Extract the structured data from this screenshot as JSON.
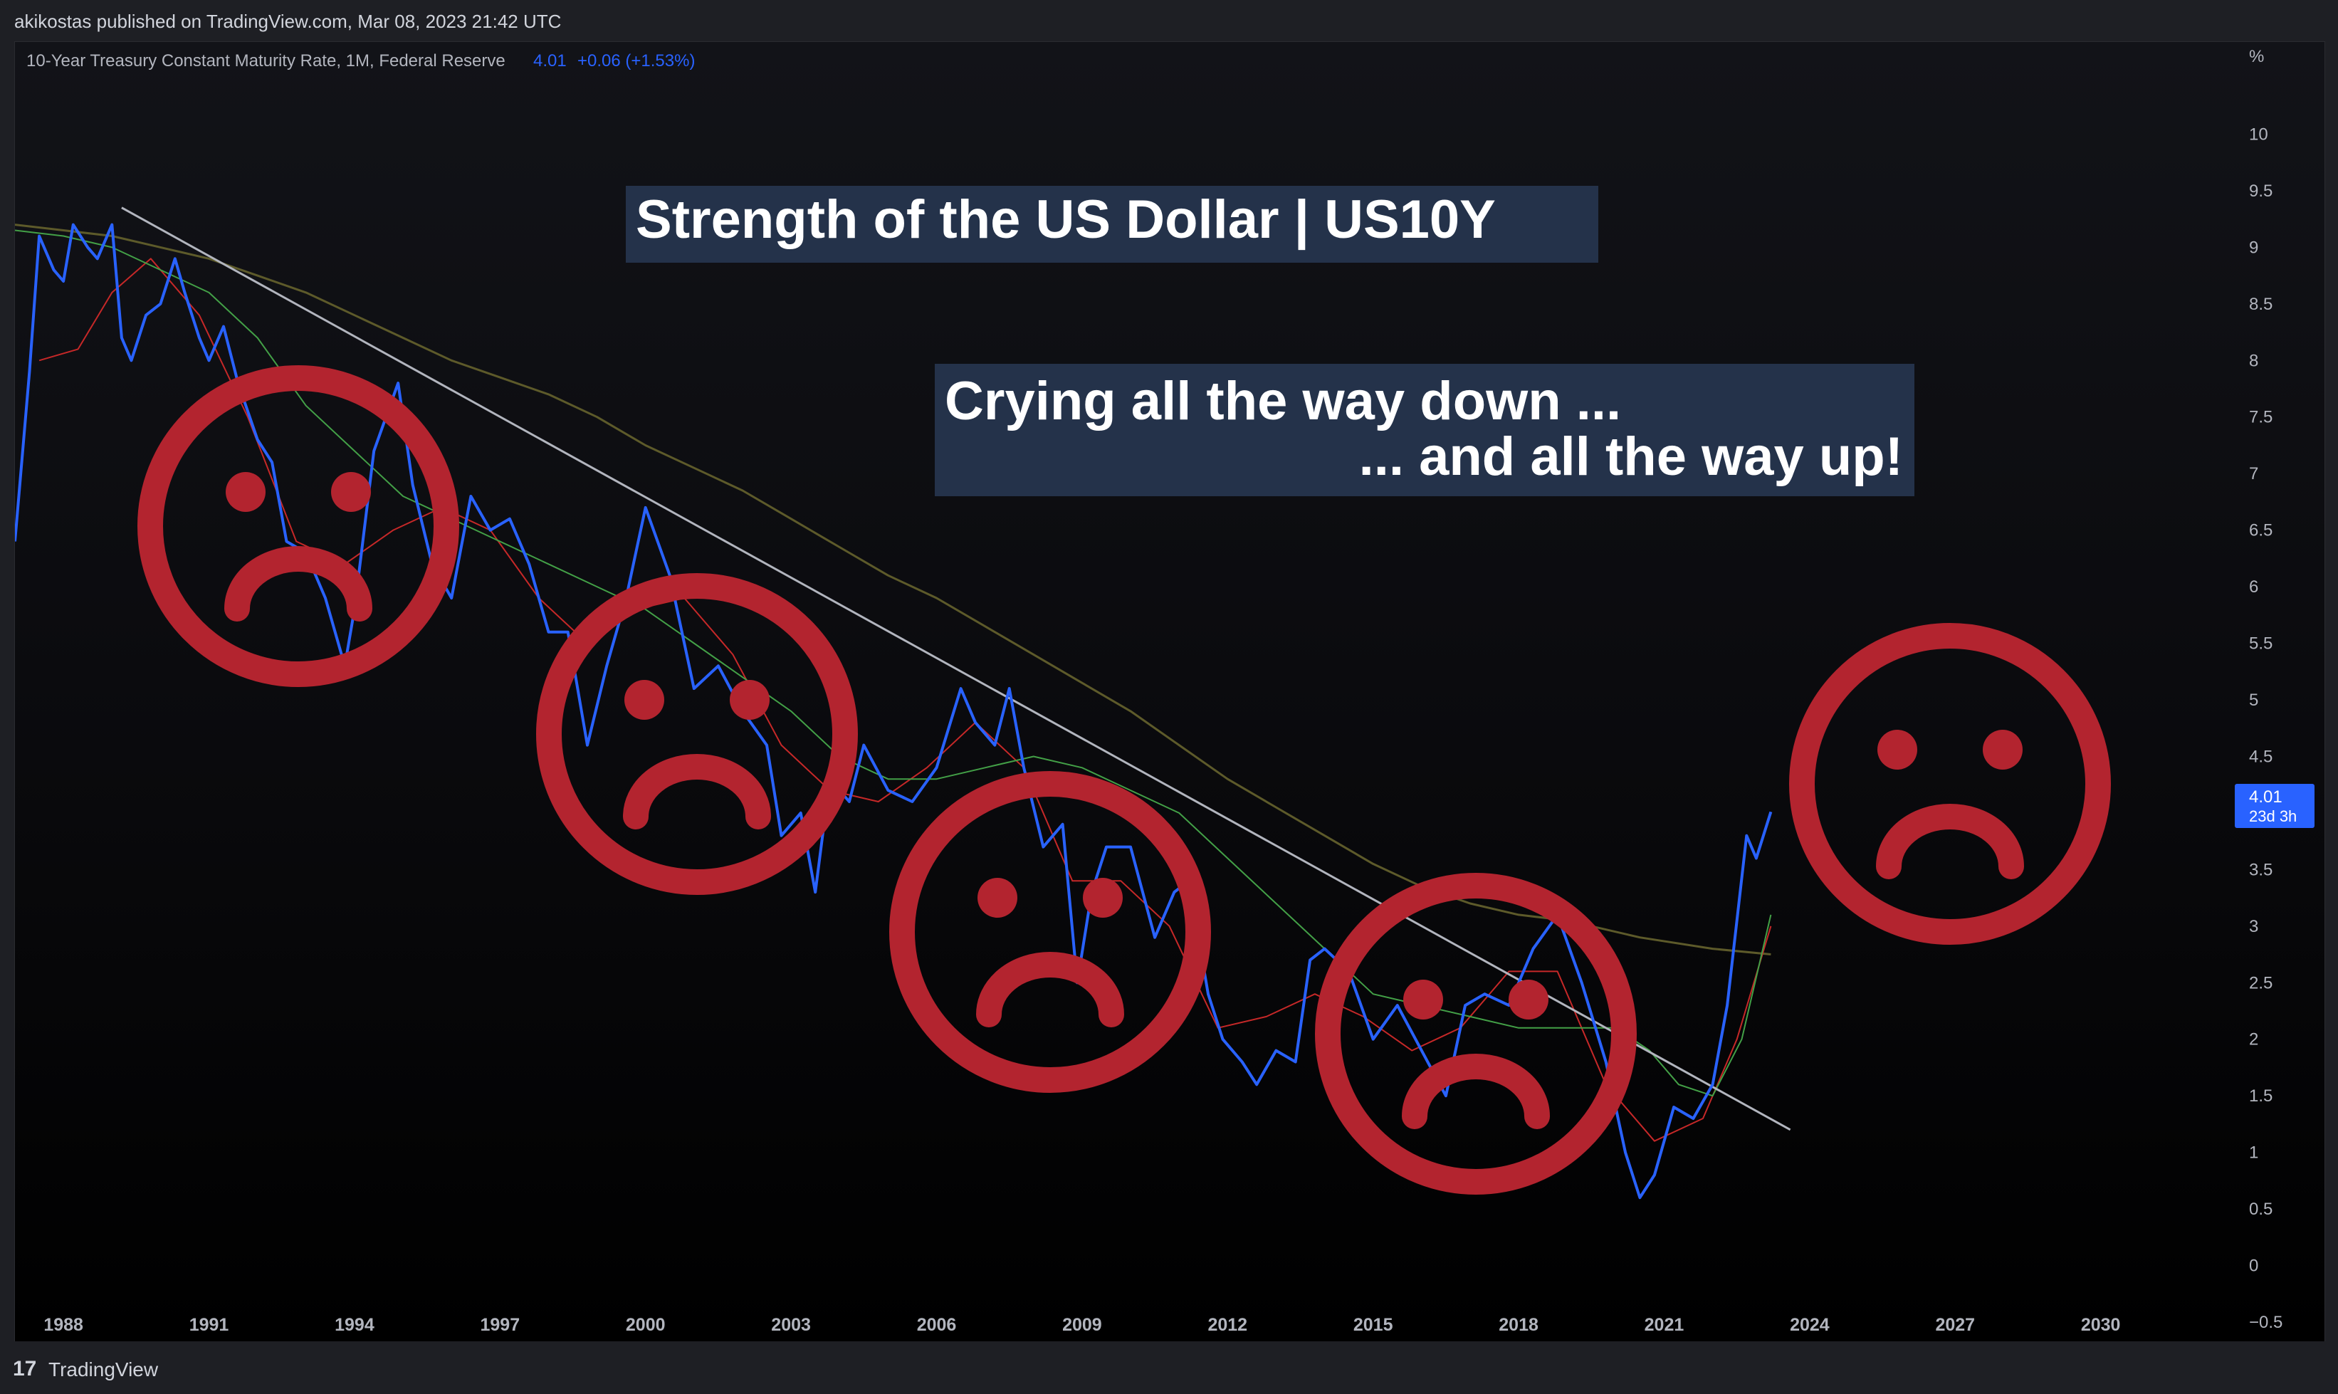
{
  "header": {
    "published": "akikostas published on TradingView.com, Mar 08, 2023 21:42 UTC"
  },
  "legend": {
    "symbol": "10-Year Treasury Constant Maturity Rate, 1M, Federal Reserve",
    "price": "4.01",
    "change": "+0.06 (+1.53%)"
  },
  "colors": {
    "price_line": "#2962ff",
    "ma_red": "#c62828",
    "ma_green": "#43a047",
    "ma_olive": "#5d5a2a",
    "trendline": "#b2b5be",
    "face": "#b3242f",
    "banner_bg": "#24324a",
    "price_tag": "#2962ff"
  },
  "annotations": {
    "title": "Strength of the US Dollar | US10Y",
    "caption_line1": "Crying all the way down ...",
    "caption_line2": "... and all the way up!"
  },
  "price_tag": {
    "value": "4.01",
    "countdown": "23d 3h"
  },
  "axis": {
    "unit": "%",
    "y_labels": [
      "10",
      "9.5",
      "9",
      "8.5",
      "8",
      "7.5",
      "7",
      "6.5",
      "6",
      "5.5",
      "5",
      "4.5",
      "4",
      "3.5",
      "3",
      "2.5",
      "2",
      "1.5",
      "1",
      "0.5",
      "0",
      "−0.5"
    ],
    "x_labels": [
      "1988",
      "1991",
      "1994",
      "1997",
      "2000",
      "2003",
      "2006",
      "2009",
      "2012",
      "2015",
      "2018",
      "2021",
      "2024",
      "2027",
      "2030"
    ]
  },
  "footer": {
    "brand": "TradingView",
    "logo": "17"
  },
  "chart_data": {
    "type": "line",
    "title": "Strength of the US Dollar | US10Y",
    "x_unit": "year",
    "y_unit": "%",
    "ylim": [
      -0.5,
      10.5
    ],
    "xlim": [
      1987.0,
      2032.5
    ],
    "series": [
      {
        "name": "10-Year Treasury Constant Maturity Rate, 1M, Federal Reserve",
        "x": [
          1987.0,
          1987.3,
          1987.5,
          1987.8,
          1988.0,
          1988.2,
          1988.5,
          1988.7,
          1989.0,
          1989.2,
          1989.4,
          1989.7,
          1990.0,
          1990.3,
          1990.5,
          1990.8,
          1991.0,
          1991.3,
          1991.6,
          1992.0,
          1992.3,
          1992.6,
          1993.0,
          1993.4,
          1993.8,
          1994.0,
          1994.4,
          1994.9,
          1995.2,
          1995.6,
          1996.0,
          1996.4,
          1996.8,
          1997.2,
          1997.6,
          1998.0,
          1998.4,
          1998.8,
          1999.2,
          1999.6,
          2000.0,
          2000.5,
          2001.0,
          2001.5,
          2002.0,
          2002.5,
          2002.8,
          2003.2,
          2003.5,
          2003.8,
          2004.2,
          2004.5,
          2005.0,
          2005.5,
          2006.0,
          2006.5,
          2006.8,
          2007.2,
          2007.5,
          2007.8,
          2008.2,
          2008.6,
          2008.9,
          2009.2,
          2009.5,
          2010.0,
          2010.5,
          2010.9,
          2011.2,
          2011.6,
          2011.9,
          2012.3,
          2012.6,
          2013.0,
          2013.4,
          2013.7,
          2014.0,
          2014.5,
          2015.0,
          2015.5,
          2016.0,
          2016.5,
          2016.9,
          2017.3,
          2017.8,
          2018.3,
          2018.8,
          2019.3,
          2019.8,
          2020.2,
          2020.5,
          2020.8,
          2021.2,
          2021.6,
          2022.0,
          2022.3,
          2022.7,
          2022.9,
          2023.2
        ],
        "values": [
          6.4,
          7.9,
          9.1,
          8.8,
          8.7,
          9.2,
          9.0,
          8.9,
          9.2,
          8.2,
          8.0,
          8.4,
          8.5,
          8.9,
          8.6,
          8.2,
          8.0,
          8.3,
          7.8,
          7.3,
          7.1,
          6.4,
          6.3,
          5.9,
          5.3,
          5.8,
          7.2,
          7.8,
          6.9,
          6.2,
          5.9,
          6.8,
          6.5,
          6.6,
          6.2,
          5.6,
          5.6,
          4.6,
          5.3,
          5.9,
          6.7,
          6.1,
          5.1,
          5.3,
          4.9,
          4.6,
          3.8,
          4.0,
          3.3,
          4.3,
          4.1,
          4.6,
          4.2,
          4.1,
          4.4,
          5.1,
          4.8,
          4.6,
          5.1,
          4.4,
          3.7,
          3.9,
          2.5,
          3.3,
          3.7,
          3.7,
          2.9,
          3.3,
          3.4,
          2.4,
          2.0,
          1.8,
          1.6,
          1.9,
          1.8,
          2.7,
          2.8,
          2.6,
          2.0,
          2.3,
          1.9,
          1.5,
          2.3,
          2.4,
          2.3,
          2.8,
          3.1,
          2.5,
          1.8,
          1.0,
          0.6,
          0.8,
          1.4,
          1.3,
          1.6,
          2.3,
          3.8,
          3.6,
          4.01
        ]
      },
      {
        "name": "",
        "type": "ma",
        "values": [
          9.15,
          9.1,
          9.0,
          8.8,
          8.6,
          8.2,
          7.6,
          7.2,
          6.8,
          6.6,
          6.4,
          6.2,
          6.0,
          5.8,
          5.5,
          5.2,
          4.9,
          4.5,
          4.3,
          4.3,
          4.4,
          4.5,
          4.4,
          4.2,
          4.0,
          3.6,
          3.2,
          2.8,
          2.4,
          2.3,
          2.2,
          2.1,
          2.1,
          2.1,
          1.9,
          1.6,
          1.5,
          2.0,
          3.1
        ],
        "x": [
          1987.0,
          1988.0,
          1989.0,
          1990.0,
          1991.0,
          1992.0,
          1993.0,
          1994.0,
          1995.0,
          1996.0,
          1997.0,
          1998.0,
          1999.0,
          2000.0,
          2001.0,
          2002.0,
          2003.0,
          2004.0,
          2005.0,
          2006.0,
          2007.0,
          2008.0,
          2009.0,
          2010.0,
          2011.0,
          2012.0,
          2013.0,
          2014.0,
          2015.0,
          2016.0,
          2017.0,
          2018.0,
          2019.0,
          2020.0,
          2020.7,
          2021.3,
          2022.0,
          2022.6,
          2023.2
        ]
      },
      {
        "name": "",
        "type": "ma",
        "values": [
          8.0,
          8.1,
          8.6,
          8.9,
          8.4,
          7.5,
          6.4,
          6.2,
          6.5,
          6.7,
          6.5,
          5.9,
          5.5,
          5.8,
          5.9,
          5.4,
          4.6,
          4.2,
          4.1,
          4.4,
          4.8,
          4.4,
          3.4,
          3.4,
          3.0,
          2.1,
          2.2,
          2.4,
          2.2,
          1.9,
          2.1,
          2.6,
          2.6,
          1.6,
          1.1,
          1.3,
          2.0,
          3.0
        ],
        "x": [
          1987.5,
          1988.3,
          1989.0,
          1989.8,
          1990.8,
          1991.8,
          1992.8,
          1993.8,
          1994.8,
          1995.8,
          1996.8,
          1997.8,
          1998.8,
          1999.8,
          2000.8,
          2001.8,
          2002.8,
          2003.8,
          2004.8,
          2005.8,
          2006.8,
          2007.8,
          2008.8,
          2009.8,
          2010.8,
          2011.8,
          2012.8,
          2013.8,
          2014.8,
          2015.8,
          2016.8,
          2017.8,
          2018.8,
          2019.8,
          2020.8,
          2021.8,
          2022.5,
          2023.2
        ]
      },
      {
        "name": "",
        "type": "ma",
        "values": [
          9.2,
          9.15,
          9.1,
          9.0,
          8.9,
          8.75,
          8.6,
          8.4,
          8.2,
          8.0,
          7.85,
          7.7,
          7.5,
          7.25,
          7.05,
          6.85,
          6.6,
          6.35,
          6.1,
          5.9,
          5.65,
          5.4,
          5.15,
          4.9,
          4.6,
          4.3,
          4.05,
          3.8,
          3.55,
          3.35,
          3.2,
          3.1,
          3.05,
          2.9,
          2.8,
          2.75
        ],
        "x": [
          1987.0,
          1988.0,
          1989.0,
          1990.0,
          1991.0,
          1992.0,
          1993.0,
          1994.0,
          1995.0,
          1996.0,
          1997.0,
          1998.0,
          1999.0,
          2000.0,
          2001.0,
          2002.0,
          2003.0,
          2004.0,
          2005.0,
          2006.0,
          2007.0,
          2008.0,
          2009.0,
          2010.0,
          2011.0,
          2012.0,
          2013.0,
          2014.0,
          2015.0,
          2016.0,
          2017.0,
          2018.0,
          2019.0,
          2020.5,
          2022.0,
          2023.2
        ]
      }
    ],
    "trendline": {
      "x": [
        1989.2,
        2023.6
      ],
      "y": [
        9.35,
        1.2
      ]
    },
    "annotations": [
      "Strength of the US Dollar | US10Y",
      "Crying all the way down ...",
      "... and all the way up!"
    ],
    "last_value": 4.01,
    "legend_position": "top-left",
    "grid": false
  }
}
